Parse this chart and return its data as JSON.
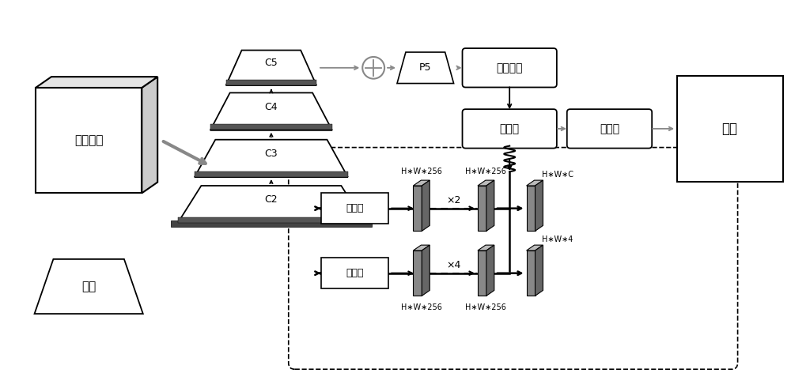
{
  "bg_color": "#ffffff",
  "labels": {
    "backbone": "主干网络",
    "input": "输入",
    "atrous_conv": "空洞卷积",
    "detect_head": "检测头",
    "post_proc": "后处理",
    "output": "输出",
    "classifier": "分类器",
    "regressor": "回归器",
    "p5": "P5",
    "hwc256_1": "H∗W∗256",
    "hwc256_2": "H∗W∗256",
    "hwc256_3": "H∗W∗256",
    "hwc256_4": "H∗W∗256",
    "hwc_c": "H∗W∗C",
    "hwc_4": "H∗W∗4",
    "x2": "×2",
    "x4": "×4",
    "c5": "C5",
    "c4": "C4",
    "c3": "C3",
    "c2": "C2"
  }
}
